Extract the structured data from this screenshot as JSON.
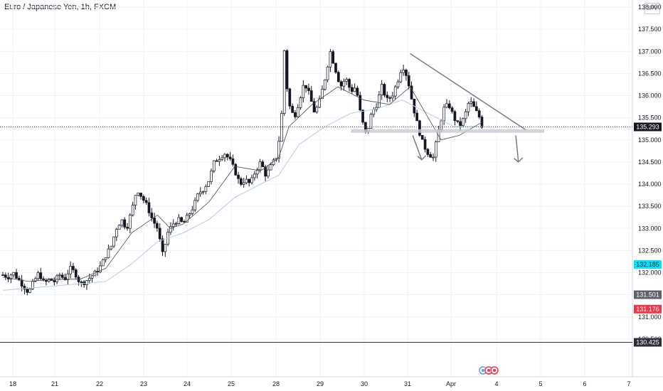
{
  "header": {
    "title": "Euro / Japanese Yen, 1h, FXCM",
    "currency": "JPY"
  },
  "colors": {
    "up": "#131722",
    "down": "#131722",
    "ma_fast": "#4a4a4a",
    "ma_slow": "#b5cfe3",
    "trendline": "#787b86",
    "support_zone": "#c8cbd2",
    "bg": "#ffffff"
  },
  "price_badges": [
    {
      "label": "135.293",
      "value": 135.293,
      "bg": "#131722",
      "fg": "#ffffff"
    },
    {
      "label": "132.185",
      "value": 132.185,
      "bg": "#00e5ff",
      "fg": "#131722"
    },
    {
      "label": "131.501",
      "value": 131.501,
      "bg": "#5d606b",
      "fg": "#ffffff"
    },
    {
      "label": "131.176",
      "value": 131.176,
      "bg": "#f23645",
      "fg": "#ffffff"
    },
    {
      "label": "130.425",
      "value": 130.425,
      "bg": "#2a2e39",
      "fg": "#ffffff"
    }
  ],
  "chart_data": {
    "type": "candlestick",
    "title": "Euro / Japanese Yen, 1h, FXCM",
    "ylim": [
      130.0,
      138.0
    ],
    "y_ticks": [
      "138.000",
      "137.500",
      "137.000",
      "136.500",
      "136.000",
      "135.500",
      "135.000",
      "134.500",
      "134.000",
      "133.500",
      "133.000",
      "132.500",
      "132.000",
      "131.500",
      "131.000",
      "130.500"
    ],
    "x_ticks": [
      "18",
      "21",
      "22",
      "23",
      "24",
      "25",
      "28",
      "29",
      "30",
      "31",
      "Apr",
      "4",
      "5",
      "6",
      "7"
    ],
    "last_price": 135.293,
    "close_path": [
      [
        0,
        131.95
      ],
      [
        4,
        131.9
      ],
      [
        8,
        132.0
      ],
      [
        12,
        131.85
      ],
      [
        16,
        131.7
      ],
      [
        20,
        131.55
      ],
      [
        24,
        131.8
      ],
      [
        28,
        132.0
      ],
      [
        32,
        131.75
      ],
      [
        36,
        131.85
      ],
      [
        40,
        131.8
      ],
      [
        44,
        131.95
      ],
      [
        48,
        131.85
      ],
      [
        52,
        132.1
      ],
      [
        56,
        132.0
      ],
      [
        60,
        131.75
      ],
      [
        64,
        131.8
      ],
      [
        68,
        131.9
      ],
      [
        72,
        132.0
      ],
      [
        76,
        132.15
      ],
      [
        80,
        132.4
      ],
      [
        84,
        132.6
      ],
      [
        88,
        133.0
      ],
      [
        92,
        133.2
      ],
      [
        96,
        133.0
      ],
      [
        100,
        133.4
      ],
      [
        104,
        133.9
      ],
      [
        108,
        133.7
      ],
      [
        112,
        133.5
      ],
      [
        116,
        133.2
      ],
      [
        120,
        133.0
      ],
      [
        124,
        132.4
      ],
      [
        128,
        132.9
      ],
      [
        132,
        133.1
      ],
      [
        136,
        133.2
      ],
      [
        140,
        133.1
      ],
      [
        144,
        133.3
      ],
      [
        148,
        133.5
      ],
      [
        152,
        133.8
      ],
      [
        156,
        133.9
      ],
      [
        160,
        134.1
      ],
      [
        164,
        134.5
      ],
      [
        168,
        134.6
      ],
      [
        172,
        134.7
      ],
      [
        176,
        134.55
      ],
      [
        180,
        134.3
      ],
      [
        184,
        134.0
      ],
      [
        188,
        134.1
      ],
      [
        192,
        134.0
      ],
      [
        196,
        134.3
      ],
      [
        200,
        134.5
      ],
      [
        204,
        134.2
      ],
      [
        208,
        134.4
      ],
      [
        212,
        134.6
      ],
      [
        216,
        135.3
      ],
      [
        218,
        137.2
      ],
      [
        220,
        136.3
      ],
      [
        222,
        135.8
      ],
      [
        226,
        135.5
      ],
      [
        230,
        135.9
      ],
      [
        234,
        136.3
      ],
      [
        238,
        136.0
      ],
      [
        242,
        135.6
      ],
      [
        246,
        135.9
      ],
      [
        250,
        136.4
      ],
      [
        254,
        137.0
      ],
      [
        258,
        136.6
      ],
      [
        262,
        136.2
      ],
      [
        266,
        136.4
      ],
      [
        270,
        136.1
      ],
      [
        274,
        136.2
      ],
      [
        278,
        135.5
      ],
      [
        282,
        135.1
      ],
      [
        286,
        135.6
      ],
      [
        290,
        135.8
      ],
      [
        294,
        136.2
      ],
      [
        298,
        135.9
      ],
      [
        302,
        136.0
      ],
      [
        306,
        136.3
      ],
      [
        310,
        136.7
      ],
      [
        314,
        136.4
      ],
      [
        318,
        135.8
      ],
      [
        322,
        135.3
      ],
      [
        326,
        134.9
      ],
      [
        330,
        134.7
      ],
      [
        334,
        134.6
      ],
      [
        338,
        135.2
      ],
      [
        342,
        135.7
      ],
      [
        346,
        135.8
      ],
      [
        350,
        135.5
      ],
      [
        354,
        135.3
      ],
      [
        358,
        135.5
      ],
      [
        362,
        135.9
      ],
      [
        366,
        135.7
      ],
      [
        370,
        135.5
      ],
      [
        372,
        135.293
      ]
    ],
    "ma_fast_path": [
      [
        0,
        131.9
      ],
      [
        20,
        131.8
      ],
      [
        40,
        131.85
      ],
      [
        60,
        131.85
      ],
      [
        80,
        132.1
      ],
      [
        100,
        132.9
      ],
      [
        120,
        133.3
      ],
      [
        130,
        133.0
      ],
      [
        140,
        133.1
      ],
      [
        160,
        133.6
      ],
      [
        180,
        134.4
      ],
      [
        200,
        134.3
      ],
      [
        214,
        134.6
      ],
      [
        222,
        135.3
      ],
      [
        240,
        135.8
      ],
      [
        260,
        136.2
      ],
      [
        280,
        135.9
      ],
      [
        300,
        135.8
      ],
      [
        316,
        136.2
      ],
      [
        326,
        135.7
      ],
      [
        340,
        135.0
      ],
      [
        354,
        135.1
      ],
      [
        372,
        135.4
      ]
    ],
    "ma_slow_path": [
      [
        0,
        131.6
      ],
      [
        40,
        131.7
      ],
      [
        80,
        131.8
      ],
      [
        100,
        132.2
      ],
      [
        120,
        132.7
      ],
      [
        140,
        132.9
      ],
      [
        160,
        133.2
      ],
      [
        180,
        133.7
      ],
      [
        200,
        134.0
      ],
      [
        214,
        134.2
      ],
      [
        230,
        134.9
      ],
      [
        250,
        135.3
      ],
      [
        270,
        135.6
      ],
      [
        290,
        135.7
      ],
      [
        310,
        135.9
      ],
      [
        330,
        135.6
      ],
      [
        350,
        135.3
      ],
      [
        372,
        135.3
      ]
    ],
    "annotations": [
      {
        "type": "trendline",
        "from": [
          316,
          136.95
        ],
        "to": [
          406,
          135.22
        ]
      },
      {
        "type": "support_zone",
        "x": [
          270,
          420
        ],
        "y": [
          135.16,
          135.24
        ]
      },
      {
        "type": "arrow",
        "from": [
          318,
          135.1
        ],
        "to": [
          325,
          134.55
        ]
      },
      {
        "type": "arrow",
        "from": [
          398,
          135.1
        ],
        "to": [
          400,
          134.5
        ]
      }
    ]
  }
}
